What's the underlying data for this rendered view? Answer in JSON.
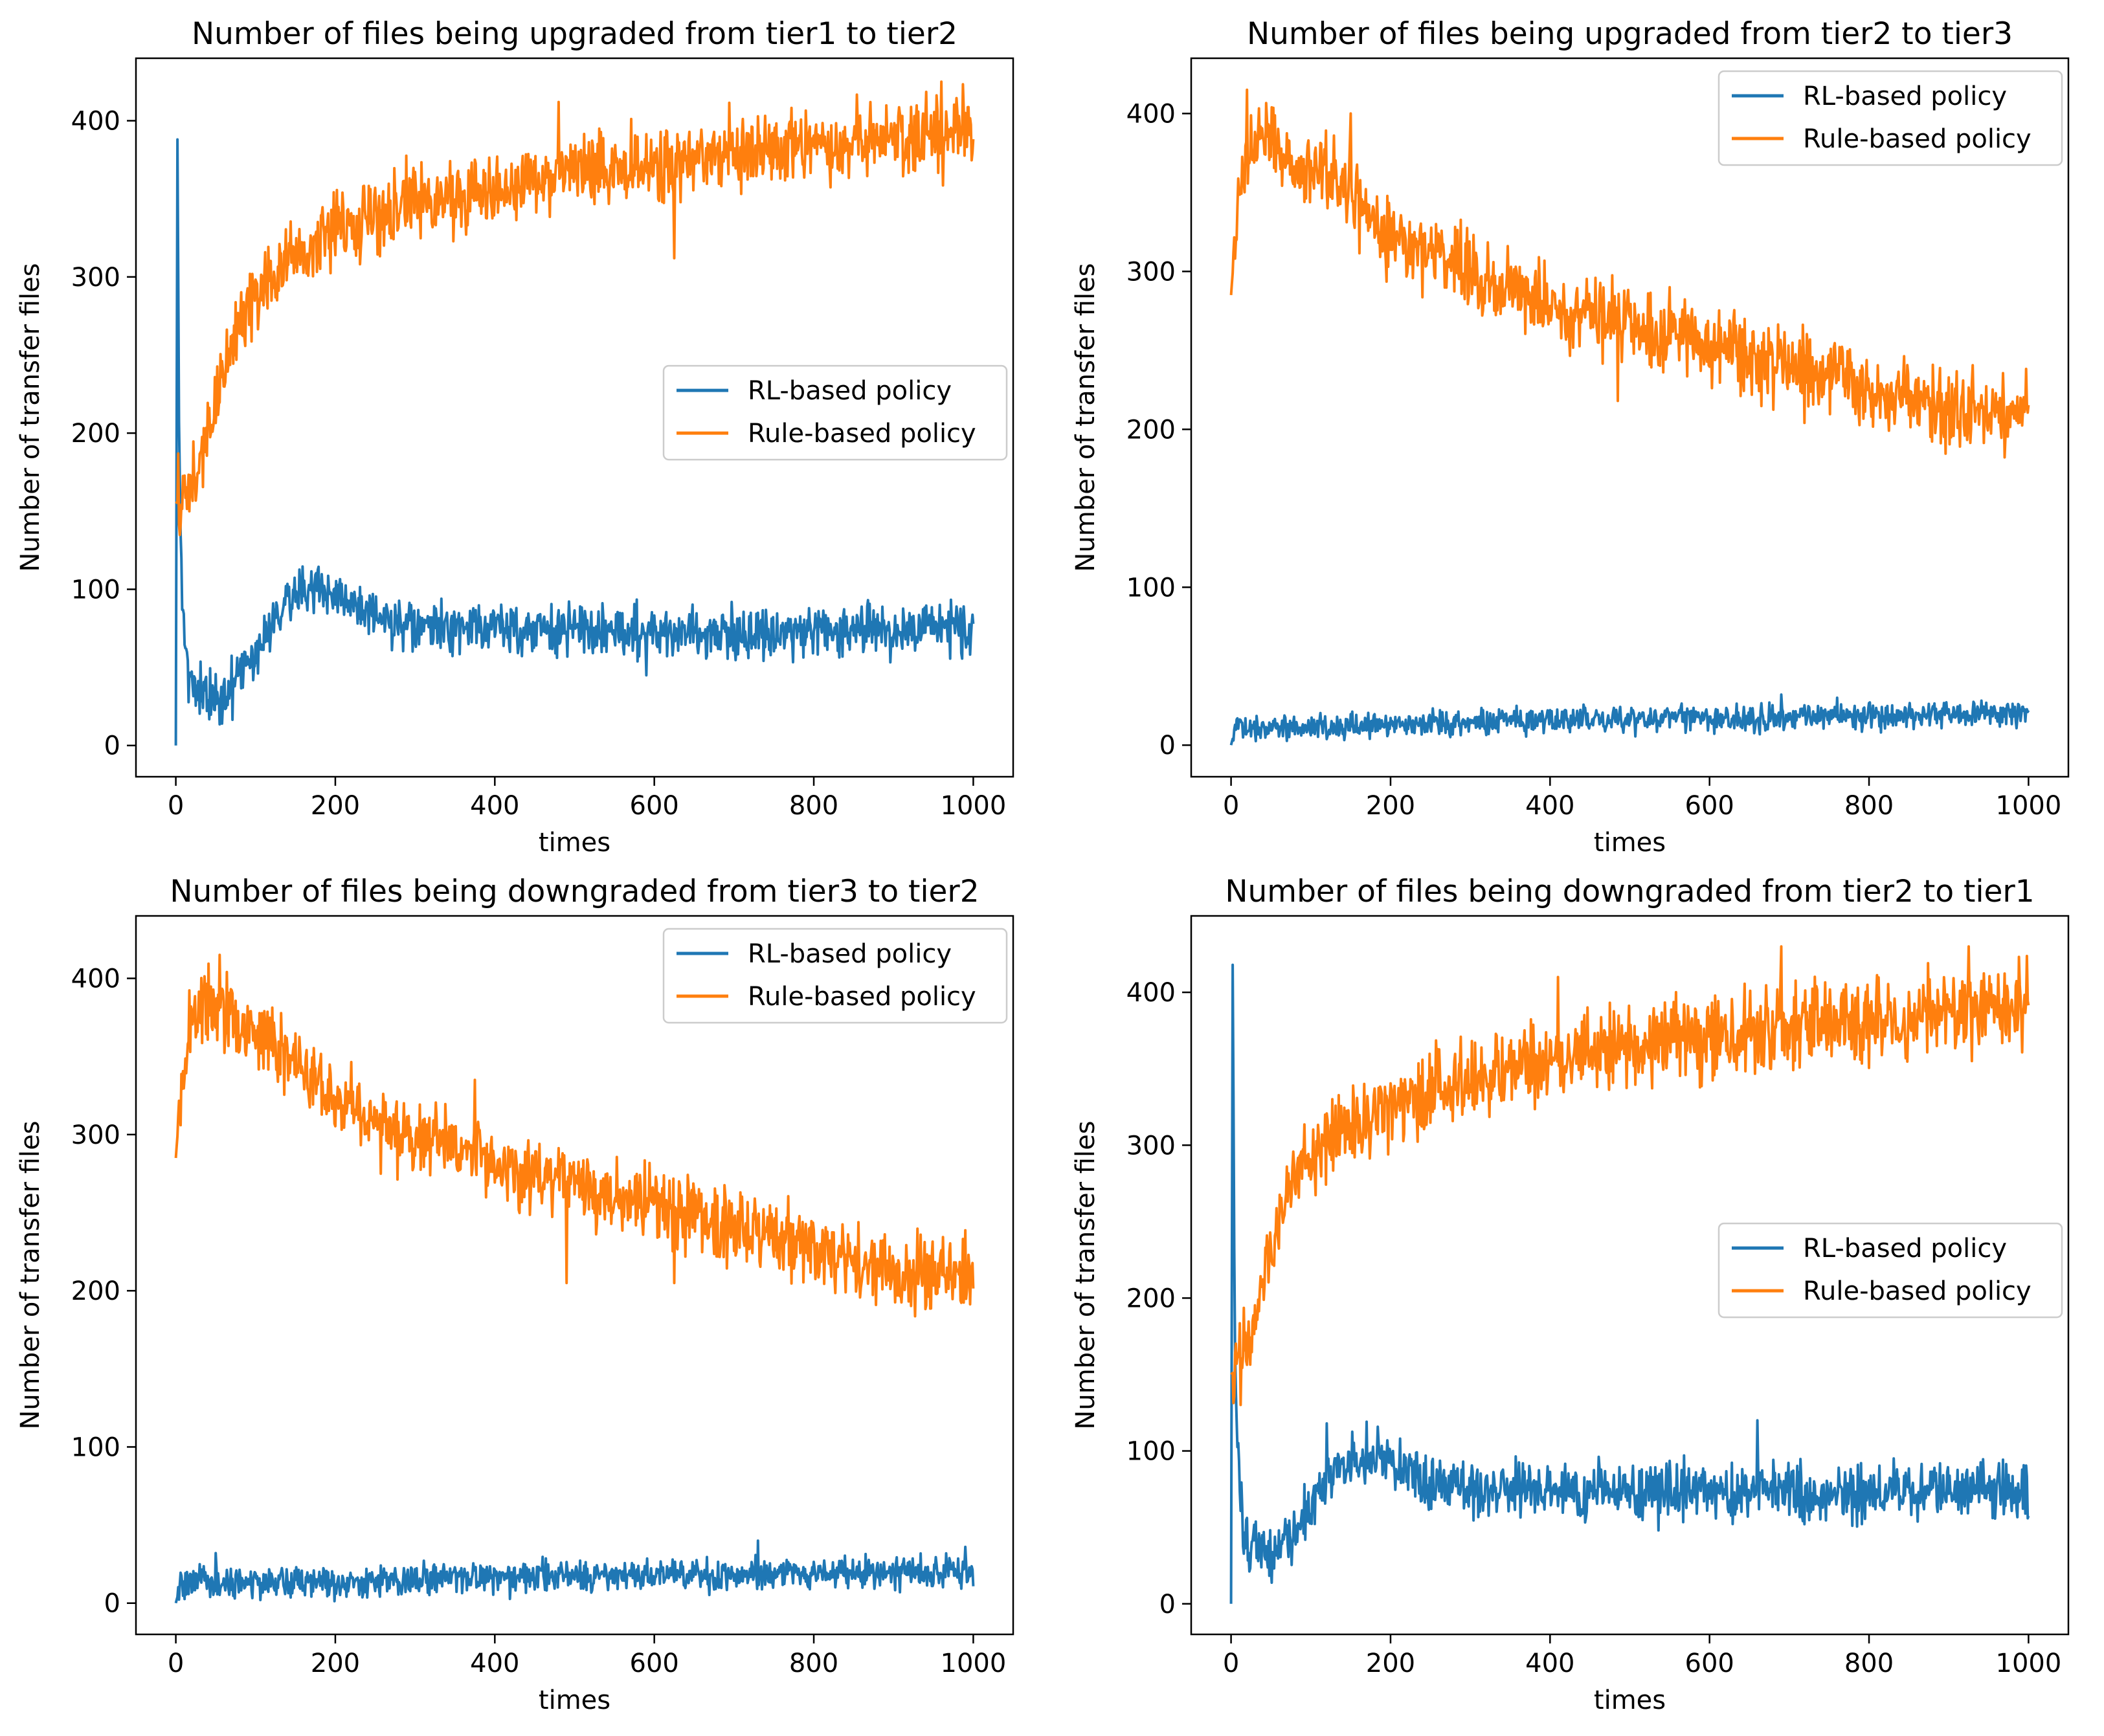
{
  "colors": {
    "rl": "#1f77b4",
    "rule": "#ff7f0e",
    "axis": "#000000",
    "legend_border": "#cccccc"
  },
  "chart_data": [
    {
      "type": "line",
      "title": "Number of files being upgraded from tier1 to tier2",
      "xlabel": "times",
      "ylabel": "Number of transfer files",
      "xlim": [
        -50,
        1050
      ],
      "ylim": [
        -20,
        440
      ],
      "xticks": [
        0,
        200,
        400,
        600,
        800,
        1000
      ],
      "xtick_labels": [
        "0",
        "200",
        "400",
        "600",
        "800",
        "1000"
      ],
      "yticks": [
        0,
        100,
        200,
        300,
        400
      ],
      "ytick_labels": [
        "0",
        "100",
        "200",
        "300",
        "400"
      ],
      "legend": "center-right",
      "series": [
        {
          "name": "RL-based policy",
          "color_key": "rl",
          "x": [
            0,
            2,
            5,
            10,
            15,
            20,
            30,
            40,
            50,
            60,
            70,
            80,
            100,
            120,
            140,
            160,
            180,
            200,
            220,
            250,
            300,
            350,
            400,
            450,
            500,
            600,
            700,
            800,
            900,
            1000
          ],
          "y": [
            0,
            388,
            140,
            80,
            50,
            38,
            32,
            32,
            30,
            32,
            35,
            45,
            60,
            80,
            95,
            100,
            100,
            97,
            90,
            80,
            75,
            75,
            76,
            74,
            74,
            73,
            72,
            73,
            74,
            75
          ],
          "noise": 8,
          "spike": [
            [
              5,
              170
            ],
            [
              7,
              120
            ],
            [
              590,
              45
            ]
          ]
        },
        {
          "name": "Rule-based policy",
          "color_key": "rule",
          "x": [
            0,
            10,
            20,
            30,
            40,
            50,
            60,
            70,
            80,
            100,
            120,
            140,
            160,
            180,
            200,
            250,
            300,
            350,
            400,
            450,
            500,
            600,
            700,
            800,
            900,
            1000
          ],
          "y": [
            155,
            160,
            165,
            180,
            200,
            220,
            240,
            255,
            270,
            290,
            300,
            308,
            315,
            322,
            330,
            340,
            348,
            352,
            355,
            362,
            368,
            372,
            378,
            384,
            390,
            392
          ],
          "noise": 12,
          "spike": [
            [
              625,
              312
            ],
            [
              480,
              412
            ],
            [
              960,
              425
            ]
          ]
        }
      ]
    },
    {
      "type": "line",
      "title": "Number of files being upgraded from tier2 to tier3",
      "xlabel": "times",
      "ylabel": "Number of transfer files",
      "xlim": [
        -50,
        1050
      ],
      "ylim": [
        -20,
        435
      ],
      "xticks": [
        0,
        200,
        400,
        600,
        800,
        1000
      ],
      "xtick_labels": [
        "0",
        "200",
        "400",
        "600",
        "800",
        "1000"
      ],
      "yticks": [
        0,
        100,
        200,
        300,
        400
      ],
      "ytick_labels": [
        "0",
        "100",
        "200",
        "300",
        "400"
      ],
      "legend": "upper-right",
      "series": [
        {
          "name": "RL-based policy",
          "color_key": "rl",
          "x": [
            0,
            5,
            10,
            50,
            100,
            200,
            300,
            400,
            500,
            600,
            700,
            800,
            900,
            1000
          ],
          "y": [
            0,
            10,
            12,
            12,
            12,
            13,
            15,
            16,
            17,
            17,
            18,
            19,
            19,
            20
          ],
          "noise": 4,
          "spike": [
            [
              690,
              32
            ],
            [
              760,
              30
            ]
          ]
        },
        {
          "name": "Rule-based policy",
          "color_key": "rule",
          "x": [
            0,
            5,
            10,
            20,
            30,
            40,
            60,
            80,
            100,
            120,
            150,
            180,
            200,
            250,
            300,
            350,
            400,
            450,
            500,
            550,
            600,
            650,
            700,
            750,
            800,
            850,
            900,
            950,
            1000
          ],
          "y": [
            285,
            320,
            345,
            375,
            385,
            385,
            378,
            370,
            365,
            360,
            352,
            335,
            320,
            312,
            300,
            290,
            280,
            275,
            268,
            262,
            255,
            248,
            242,
            235,
            225,
            218,
            212,
            208,
            210
          ],
          "noise": 12,
          "spike": [
            [
              20,
              415
            ],
            [
              150,
              400
            ],
            [
              485,
              218
            ]
          ]
        }
      ]
    },
    {
      "type": "line",
      "title": "Number of files being downgraded from tier3 to tier2",
      "xlabel": "times",
      "ylabel": "Number of transfer files",
      "xlim": [
        -50,
        1050
      ],
      "ylim": [
        -20,
        440
      ],
      "xticks": [
        0,
        200,
        400,
        600,
        800,
        1000
      ],
      "xtick_labels": [
        "0",
        "200",
        "400",
        "600",
        "800",
        "1000"
      ],
      "yticks": [
        0,
        100,
        200,
        300,
        400
      ],
      "ytick_labels": [
        "0",
        "100",
        "200",
        "300",
        "400"
      ],
      "legend": "upper-right",
      "series": [
        {
          "name": "RL-based policy",
          "color_key": "rl",
          "x": [
            0,
            5,
            10,
            50,
            100,
            200,
            300,
            400,
            500,
            600,
            700,
            800,
            900,
            1000
          ],
          "y": [
            0,
            10,
            12,
            12,
            13,
            14,
            15,
            16,
            17,
            18,
            18,
            19,
            20,
            20
          ],
          "noise": 5,
          "spike": [
            [
              50,
              32
            ],
            [
              730,
              40
            ],
            [
              990,
              36
            ]
          ]
        },
        {
          "name": "Rule-based policy",
          "color_key": "rule",
          "x": [
            0,
            5,
            10,
            20,
            30,
            40,
            60,
            80,
            100,
            120,
            150,
            180,
            200,
            250,
            300,
            350,
            400,
            450,
            500,
            550,
            600,
            650,
            700,
            750,
            800,
            850,
            900,
            950,
            1000
          ],
          "y": [
            285,
            320,
            345,
            370,
            382,
            385,
            378,
            370,
            365,
            358,
            345,
            330,
            320,
            310,
            300,
            290,
            282,
            275,
            268,
            262,
            255,
            248,
            242,
            235,
            225,
            218,
            212,
            208,
            212
          ],
          "noise": 12,
          "spike": [
            [
              55,
              415
            ],
            [
              375,
              335
            ],
            [
              490,
              205
            ],
            [
              625,
              205
            ]
          ]
        }
      ]
    },
    {
      "type": "line",
      "title": "Number of files being downgraded from tier2 to tier1",
      "xlabel": "times",
      "ylabel": "Number of transfer files",
      "xlim": [
        -50,
        1050
      ],
      "ylim": [
        -20,
        450
      ],
      "xticks": [
        0,
        200,
        400,
        600,
        800,
        1000
      ],
      "xtick_labels": [
        "0",
        "200",
        "400",
        "600",
        "800",
        "1000"
      ],
      "yticks": [
        0,
        100,
        200,
        300,
        400
      ],
      "ytick_labels": [
        "0",
        "100",
        "200",
        "300",
        "400"
      ],
      "legend": "center-right",
      "series": [
        {
          "name": "RL-based policy",
          "color_key": "rl",
          "x": [
            0,
            2,
            5,
            10,
            15,
            20,
            30,
            40,
            50,
            60,
            70,
            80,
            100,
            120,
            140,
            160,
            180,
            200,
            220,
            250,
            300,
            350,
            400,
            450,
            500,
            600,
            700,
            800,
            900,
            1000
          ],
          "y": [
            0,
            418,
            150,
            80,
            50,
            40,
            35,
            33,
            32,
            35,
            42,
            50,
            65,
            82,
            92,
            96,
            96,
            93,
            88,
            80,
            76,
            75,
            75,
            74,
            73,
            72,
            72,
            73,
            74,
            75
          ],
          "noise": 9,
          "spike": [
            [
              5,
              165
            ],
            [
              660,
              120
            ],
            [
              120,
              118
            ]
          ]
        },
        {
          "name": "Rule-based policy",
          "color_key": "rule",
          "x": [
            0,
            10,
            20,
            30,
            40,
            50,
            60,
            70,
            80,
            100,
            120,
            140,
            160,
            180,
            200,
            250,
            300,
            350,
            400,
            450,
            500,
            600,
            700,
            800,
            900,
            1000
          ],
          "y": [
            150,
            155,
            165,
            185,
            210,
            235,
            255,
            270,
            280,
            292,
            300,
            306,
            312,
            318,
            325,
            335,
            345,
            350,
            355,
            362,
            365,
            372,
            378,
            382,
            388,
            392
          ],
          "noise": 13,
          "spike": [
            [
              410,
              410
            ],
            [
              690,
              430
            ],
            [
              925,
              430
            ]
          ]
        }
      ]
    }
  ]
}
